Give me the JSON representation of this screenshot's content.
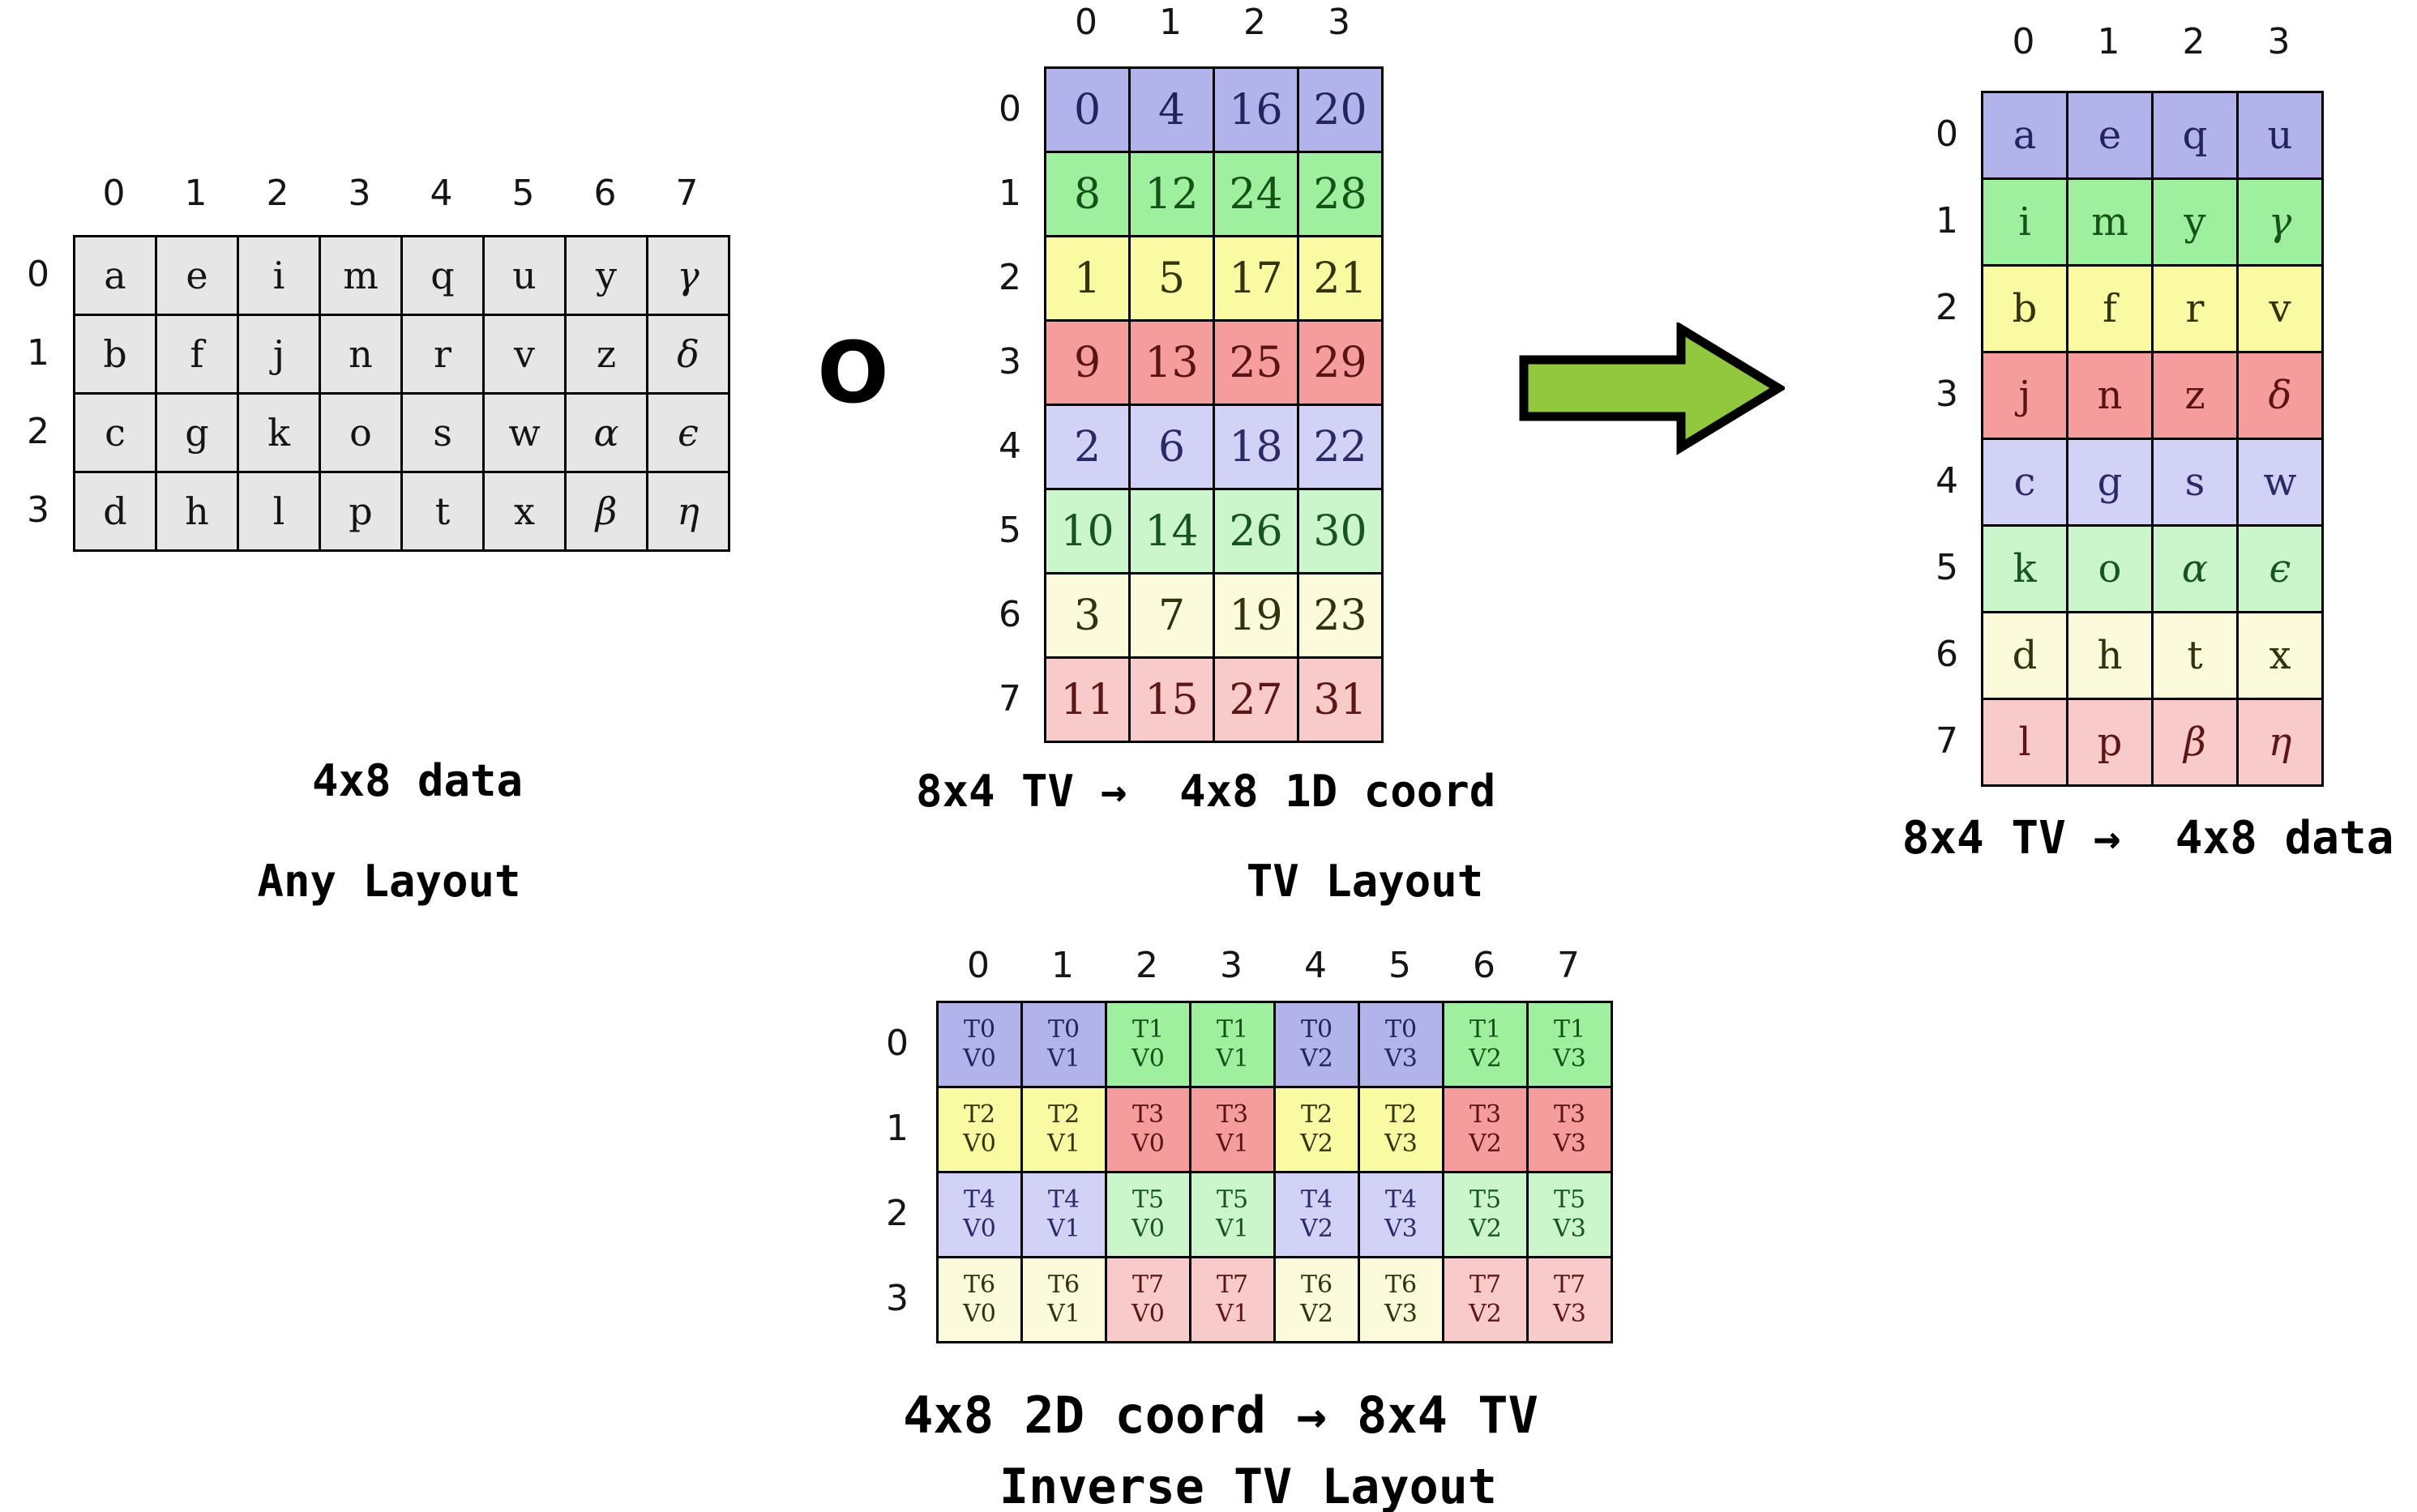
{
  "operator_symbol": "O",
  "captions": {
    "left_line1": "4x8 data",
    "left_line2": "Any Layout",
    "mid_line1": "8x4 TV →  4x8 1D coord",
    "mid_line2": "TV Layout",
    "right_line1": "8x4 TV →  4x8 data",
    "bottom_line1": "4x8 2D coord → 8x4 TV",
    "bottom_line2": "Inverse TV Layout"
  },
  "colors": {
    "cell_fill": {
      "gray": "#e6e6e6",
      "blue": "#b3b3ec",
      "green": "#9ef09e",
      "yellow": "#fafaa2",
      "red": "#f59d9d",
      "ltblue": "#d2d2f7",
      "ltgreen": "#cbf6cb",
      "ltyellow": "#fbfbdc",
      "ltred": "#f9caca"
    },
    "cell_text": {
      "gray": "#141414",
      "blue": "#23235f",
      "green": "#145217",
      "yellow": "#33330c",
      "red": "#591313",
      "ltblue": "#2a2a66",
      "ltgreen": "#185422",
      "ltyellow": "#32320c",
      "ltred": "#5c1616"
    },
    "arrow_fill": "#92c83e",
    "border": "#000000"
  },
  "tables": {
    "any_layout": {
      "col_headers": [
        "0",
        "1",
        "2",
        "3",
        "4",
        "5",
        "6",
        "7"
      ],
      "row_headers": [
        "0",
        "1",
        "2",
        "3"
      ],
      "cell_color": "gray",
      "rows": [
        [
          "a",
          "e",
          "i",
          "m",
          "q",
          "u",
          "y",
          "γ"
        ],
        [
          "b",
          "f",
          "j",
          "n",
          "r",
          "v",
          "z",
          "δ"
        ],
        [
          "c",
          "g",
          "k",
          "o",
          "s",
          "w",
          "α",
          "ϵ"
        ],
        [
          "d",
          "h",
          "l",
          "p",
          "t",
          "x",
          "β",
          "η"
        ]
      ]
    },
    "tv_layout": {
      "col_headers": [
        "0",
        "1",
        "2",
        "3"
      ],
      "row_headers": [
        "0",
        "1",
        "2",
        "3",
        "4",
        "5",
        "6",
        "7"
      ],
      "row_colors": [
        "blue",
        "green",
        "yellow",
        "red",
        "ltblue",
        "ltgreen",
        "ltyellow",
        "ltred"
      ],
      "rows": [
        [
          "0",
          "4",
          "16",
          "20"
        ],
        [
          "8",
          "12",
          "24",
          "28"
        ],
        [
          "1",
          "5",
          "17",
          "21"
        ],
        [
          "9",
          "13",
          "25",
          "29"
        ],
        [
          "2",
          "6",
          "18",
          "22"
        ],
        [
          "10",
          "14",
          "26",
          "30"
        ],
        [
          "3",
          "7",
          "19",
          "23"
        ],
        [
          "11",
          "15",
          "27",
          "31"
        ]
      ]
    },
    "tv_data": {
      "col_headers": [
        "0",
        "1",
        "2",
        "3"
      ],
      "row_headers": [
        "0",
        "1",
        "2",
        "3",
        "4",
        "5",
        "6",
        "7"
      ],
      "row_colors": [
        "blue",
        "green",
        "yellow",
        "red",
        "ltblue",
        "ltgreen",
        "ltyellow",
        "ltred"
      ],
      "rows": [
        [
          "a",
          "e",
          "q",
          "u"
        ],
        [
          "i",
          "m",
          "y",
          "γ"
        ],
        [
          "b",
          "f",
          "r",
          "v"
        ],
        [
          "j",
          "n",
          "z",
          "δ"
        ],
        [
          "c",
          "g",
          "s",
          "w"
        ],
        [
          "k",
          "o",
          "α",
          "ϵ"
        ],
        [
          "d",
          "h",
          "t",
          "x"
        ],
        [
          "l",
          "p",
          "β",
          "η"
        ]
      ]
    },
    "inverse_tv": {
      "col_headers": [
        "0",
        "1",
        "2",
        "3",
        "4",
        "5",
        "6",
        "7"
      ],
      "row_headers": [
        "0",
        "1",
        "2",
        "3"
      ],
      "cell_colors": [
        [
          "blue",
          "blue",
          "green",
          "green",
          "blue",
          "blue",
          "green",
          "green"
        ],
        [
          "yellow",
          "yellow",
          "red",
          "red",
          "yellow",
          "yellow",
          "red",
          "red"
        ],
        [
          "ltblue",
          "ltblue",
          "ltgreen",
          "ltgreen",
          "ltblue",
          "ltblue",
          "ltgreen",
          "ltgreen"
        ],
        [
          "ltyellow",
          "ltyellow",
          "ltred",
          "ltred",
          "ltyellow",
          "ltyellow",
          "ltred",
          "ltred"
        ]
      ],
      "rows": [
        [
          [
            "T0",
            "V0"
          ],
          [
            "T0",
            "V1"
          ],
          [
            "T1",
            "V0"
          ],
          [
            "T1",
            "V1"
          ],
          [
            "T0",
            "V2"
          ],
          [
            "T0",
            "V3"
          ],
          [
            "T1",
            "V2"
          ],
          [
            "T1",
            "V3"
          ]
        ],
        [
          [
            "T2",
            "V0"
          ],
          [
            "T2",
            "V1"
          ],
          [
            "T3",
            "V0"
          ],
          [
            "T3",
            "V1"
          ],
          [
            "T2",
            "V2"
          ],
          [
            "T2",
            "V3"
          ],
          [
            "T3",
            "V2"
          ],
          [
            "T3",
            "V3"
          ]
        ],
        [
          [
            "T4",
            "V0"
          ],
          [
            "T4",
            "V1"
          ],
          [
            "T5",
            "V0"
          ],
          [
            "T5",
            "V1"
          ],
          [
            "T4",
            "V2"
          ],
          [
            "T4",
            "V3"
          ],
          [
            "T5",
            "V2"
          ],
          [
            "T5",
            "V3"
          ]
        ],
        [
          [
            "T6",
            "V0"
          ],
          [
            "T6",
            "V1"
          ],
          [
            "T7",
            "V0"
          ],
          [
            "T7",
            "V1"
          ],
          [
            "T6",
            "V2"
          ],
          [
            "T6",
            "V3"
          ],
          [
            "T7",
            "V2"
          ],
          [
            "T7",
            "V3"
          ]
        ]
      ]
    }
  }
}
